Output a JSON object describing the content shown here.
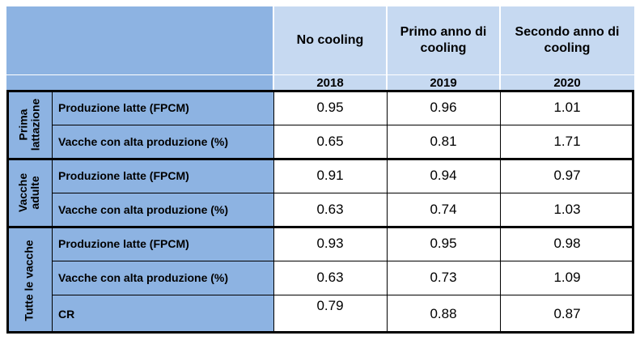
{
  "table": {
    "columns": [
      {
        "title": "No cooling",
        "year": "2018"
      },
      {
        "title": "Primo anno di cooling",
        "year": "2019"
      },
      {
        "title": "Secondo anno di cooling",
        "year": "2020"
      }
    ],
    "groups": [
      {
        "label": "Prima lattazione",
        "rows": [
          {
            "label": "Produzione latte (FPCM)",
            "values": [
              "0.95",
              "0.96",
              "1.01"
            ]
          },
          {
            "label": "Vacche con alta produzione (%)",
            "values": [
              "0.65",
              "0.81",
              "1.71"
            ]
          }
        ]
      },
      {
        "label": "Vacche adulte",
        "rows": [
          {
            "label": "Produzione latte (FPCM)",
            "values": [
              "0.91",
              "0.94",
              "0.97"
            ]
          },
          {
            "label": "Vacche con alta produzione (%)",
            "values": [
              "0.63",
              "0.74",
              "1.03"
            ]
          }
        ]
      },
      {
        "label": "Tutte le vacche",
        "rows": [
          {
            "label": "Produzione latte (FPCM)",
            "values": [
              "0.93",
              "0.95",
              "0.98"
            ]
          },
          {
            "label": "Vacche con alta produzione (%)",
            "values": [
              "0.63",
              "0.73",
              "1.09"
            ]
          },
          {
            "label": "CR",
            "values": [
              "0.79",
              "0.88",
              "0.87"
            ]
          }
        ]
      }
    ]
  },
  "colors": {
    "header_dark": "#8db3e2",
    "header_light": "#c6d9f1",
    "body": "#ffffff",
    "rule": "#000000"
  }
}
